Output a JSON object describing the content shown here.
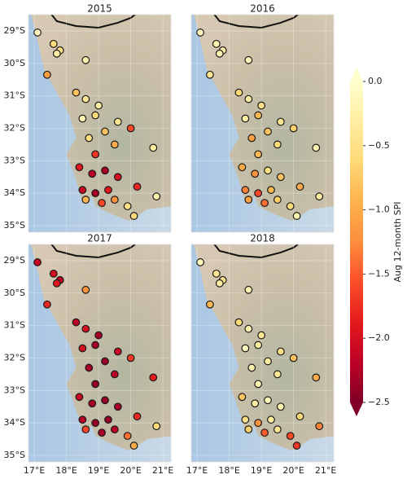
{
  "chart_data": [
    {
      "type": "scatter",
      "title": "2015",
      "x": [
        17.1,
        17.6,
        17.8,
        17.7,
        18.6,
        17.4,
        18.3,
        18.6,
        19.0,
        18.9,
        19.6,
        20.0,
        18.5,
        18.7,
        19.2,
        19.5,
        20.7,
        18.9,
        18.4,
        18.8,
        19.2,
        19.6,
        20.2,
        18.5,
        18.9,
        19.3,
        18.6,
        19.1,
        19.9,
        20.1,
        20.8,
        19.5
      ],
      "y": [
        -29.05,
        -29.4,
        -29.6,
        -29.7,
        -29.9,
        -30.35,
        -30.9,
        -31.1,
        -31.3,
        -31.6,
        -31.8,
        -32.0,
        -31.7,
        -32.3,
        -32.1,
        -32.5,
        -32.6,
        -32.8,
        -33.2,
        -33.4,
        -33.3,
        -33.5,
        -33.8,
        -33.9,
        -34.0,
        -33.9,
        -34.2,
        -34.3,
        -34.4,
        -34.7,
        -34.1,
        -34.2
      ],
      "values": [
        -0.1,
        -0.6,
        -0.5,
        -0.3,
        -0.2,
        -1.1,
        -0.8,
        -0.4,
        -0.3,
        -0.6,
        -0.4,
        -1.6,
        -0.2,
        -0.5,
        -0.8,
        -1.0,
        -0.3,
        -1.7,
        -1.9,
        -2.2,
        -2.3,
        -2.0,
        -1.8,
        -2.1,
        -2.3,
        -1.9,
        -0.9,
        -1.6,
        -0.5,
        -0.6,
        -0.2,
        -1.2
      ],
      "xlim": [
        16.82,
        21.25
      ],
      "ylim": [
        -35.2,
        -28.5
      ],
      "xticks": [
        17,
        18,
        19,
        20,
        21
      ],
      "yticks": [
        {
          "value": -29,
          "label": "29°S"
        },
        {
          "value": -30,
          "label": "30°S"
        },
        {
          "value": -31,
          "label": "31°S"
        },
        {
          "value": -32,
          "label": "32°S"
        },
        {
          "value": -33,
          "label": "33°S"
        },
        {
          "value": -34,
          "label": "34°S"
        },
        {
          "value": -35,
          "label": "35°S"
        }
      ]
    },
    {
      "type": "scatter",
      "title": "2016",
      "x": [
        17.1,
        17.6,
        17.8,
        17.7,
        18.6,
        17.4,
        18.3,
        18.6,
        19.0,
        18.9,
        19.6,
        20.0,
        18.5,
        18.7,
        19.2,
        19.5,
        20.7,
        18.9,
        18.4,
        18.8,
        19.2,
        19.6,
        20.2,
        18.5,
        18.9,
        19.3,
        18.6,
        19.1,
        19.9,
        20.1,
        20.8,
        19.5
      ],
      "y": [
        -29.05,
        -29.4,
        -29.6,
        -29.7,
        -29.9,
        -30.35,
        -30.9,
        -31.1,
        -31.3,
        -31.6,
        -31.8,
        -32.0,
        -31.7,
        -32.3,
        -32.1,
        -32.5,
        -32.6,
        -32.8,
        -33.2,
        -33.4,
        -33.3,
        -33.5,
        -33.8,
        -33.9,
        -34.0,
        -33.9,
        -34.2,
        -34.3,
        -34.4,
        -34.7,
        -34.1,
        -34.2
      ],
      "values": [
        -0.1,
        -0.2,
        -0.3,
        -0.2,
        -0.1,
        -0.4,
        -0.6,
        -0.3,
        -0.5,
        -0.9,
        -0.4,
        -0.7,
        -0.3,
        -1.1,
        -0.8,
        -0.6,
        -0.2,
        -0.9,
        -1.0,
        -1.2,
        -0.5,
        -0.8,
        -1.0,
        -1.3,
        -1.6,
        -0.9,
        -1.1,
        -1.4,
        -0.6,
        -0.2,
        -0.3,
        -0.7
      ],
      "xlim": [
        16.82,
        21.25
      ],
      "ylim": [
        -35.2,
        -28.5
      ],
      "xticks": [
        17,
        18,
        19,
        20,
        21
      ],
      "yticks": [
        -29,
        -30,
        -31,
        -32,
        -33,
        -34,
        -35
      ]
    },
    {
      "type": "scatter",
      "title": "2017",
      "x": [
        17.1,
        17.6,
        17.8,
        17.7,
        18.6,
        17.4,
        18.3,
        18.6,
        19.0,
        18.9,
        19.6,
        20.0,
        18.5,
        18.7,
        19.2,
        19.5,
        20.7,
        18.9,
        18.4,
        18.8,
        19.2,
        19.6,
        20.2,
        18.5,
        18.9,
        19.3,
        18.6,
        19.1,
        19.9,
        20.1,
        20.8,
        19.5
      ],
      "y": [
        -29.05,
        -29.4,
        -29.6,
        -29.7,
        -29.9,
        -30.35,
        -30.9,
        -31.1,
        -31.3,
        -31.6,
        -31.8,
        -32.0,
        -31.7,
        -32.3,
        -32.1,
        -32.5,
        -32.6,
        -32.8,
        -33.2,
        -33.4,
        -33.3,
        -33.5,
        -33.8,
        -33.9,
        -34.0,
        -33.9,
        -34.2,
        -34.3,
        -34.4,
        -34.7,
        -34.1,
        -34.2
      ],
      "values": [
        -2.1,
        -2.0,
        -2.2,
        -1.9,
        -1.2,
        -1.8,
        -2.2,
        -2.0,
        -2.3,
        -2.3,
        -2.1,
        -1.7,
        -2.0,
        -2.3,
        -2.4,
        -2.2,
        -1.9,
        -2.4,
        -2.1,
        -2.3,
        -2.4,
        -2.3,
        -1.8,
        -2.2,
        -2.4,
        -2.4,
        -1.6,
        -2.3,
        -1.4,
        -1.0,
        -0.6,
        -2.2
      ],
      "xlim": [
        16.82,
        21.25
      ],
      "ylim": [
        -35.2,
        -28.5
      ],
      "xticks": [
        {
          "value": 17,
          "label": "17°E"
        },
        {
          "value": 18,
          "label": "18°E"
        },
        {
          "value": 19,
          "label": "19°E"
        },
        {
          "value": 20,
          "label": "20°E"
        },
        {
          "value": 21,
          "label": "21°E"
        }
      ],
      "yticks": [
        {
          "value": -29,
          "label": "29°S"
        },
        {
          "value": -30,
          "label": "30°S"
        },
        {
          "value": -31,
          "label": "31°S"
        },
        {
          "value": -32,
          "label": "32°S"
        },
        {
          "value": -33,
          "label": "33°S"
        },
        {
          "value": -34,
          "label": "34°S"
        },
        {
          "value": -35,
          "label": "35°S"
        }
      ]
    },
    {
      "type": "scatter",
      "title": "2018",
      "x": [
        17.1,
        17.6,
        17.8,
        17.7,
        18.6,
        17.4,
        18.3,
        18.6,
        19.0,
        18.9,
        19.6,
        20.0,
        18.5,
        18.7,
        19.2,
        19.5,
        20.7,
        18.9,
        18.4,
        18.8,
        19.2,
        19.6,
        20.2,
        18.5,
        18.9,
        19.3,
        18.6,
        19.1,
        19.9,
        20.1,
        20.8,
        19.5
      ],
      "y": [
        -29.05,
        -29.4,
        -29.6,
        -29.7,
        -29.9,
        -30.35,
        -30.9,
        -31.1,
        -31.3,
        -31.6,
        -31.8,
        -32.0,
        -31.7,
        -32.3,
        -32.1,
        -32.5,
        -32.6,
        -32.8,
        -33.2,
        -33.4,
        -33.3,
        -33.5,
        -33.8,
        -33.9,
        -34.0,
        -33.9,
        -34.2,
        -34.3,
        -34.4,
        -34.7,
        -34.1,
        -34.2
      ],
      "values": [
        -0.1,
        -0.4,
        -0.5,
        -0.3,
        -0.2,
        -0.9,
        -0.6,
        -0.2,
        -0.4,
        -0.3,
        -0.5,
        -0.8,
        -0.1,
        -0.2,
        -0.3,
        -0.4,
        -1.0,
        -0.2,
        -0.8,
        -0.3,
        -0.1,
        -0.2,
        -0.6,
        -0.5,
        -1.2,
        -0.3,
        -0.7,
        -1.5,
        -1.6,
        -1.7,
        -1.3,
        -0.4
      ],
      "xlim": [
        16.82,
        21.25
      ],
      "ylim": [
        -35.2,
        -28.5
      ],
      "xticks": [
        {
          "value": 17,
          "label": "17°E"
        },
        {
          "value": 18,
          "label": "18°E"
        },
        {
          "value": 19,
          "label": "19°E"
        },
        {
          "value": 20,
          "label": "20°E"
        },
        {
          "value": 21,
          "label": "21°E"
        }
      ],
      "yticks": [
        -29,
        -30,
        -31,
        -32,
        -33,
        -34,
        -35
      ]
    }
  ],
  "colorbar": {
    "label": "Aug 12-month SPI",
    "lim": [
      -2.5,
      0
    ],
    "ticks": [
      {
        "value": 0,
        "label": "0.0"
      },
      {
        "value": -0.5,
        "label": "−0.5"
      },
      {
        "value": -1,
        "label": "−1.0"
      },
      {
        "value": -1.5,
        "label": "−1.5"
      },
      {
        "value": -2,
        "label": "−2.0"
      },
      {
        "value": -2.5,
        "label": "−2.5"
      }
    ],
    "colors": [
      "#800026",
      "#bd0026",
      "#e31a1c",
      "#fc4e2a",
      "#fd8d3c",
      "#feb24c",
      "#fed976",
      "#ffeda0",
      "#ffffcc"
    ]
  }
}
